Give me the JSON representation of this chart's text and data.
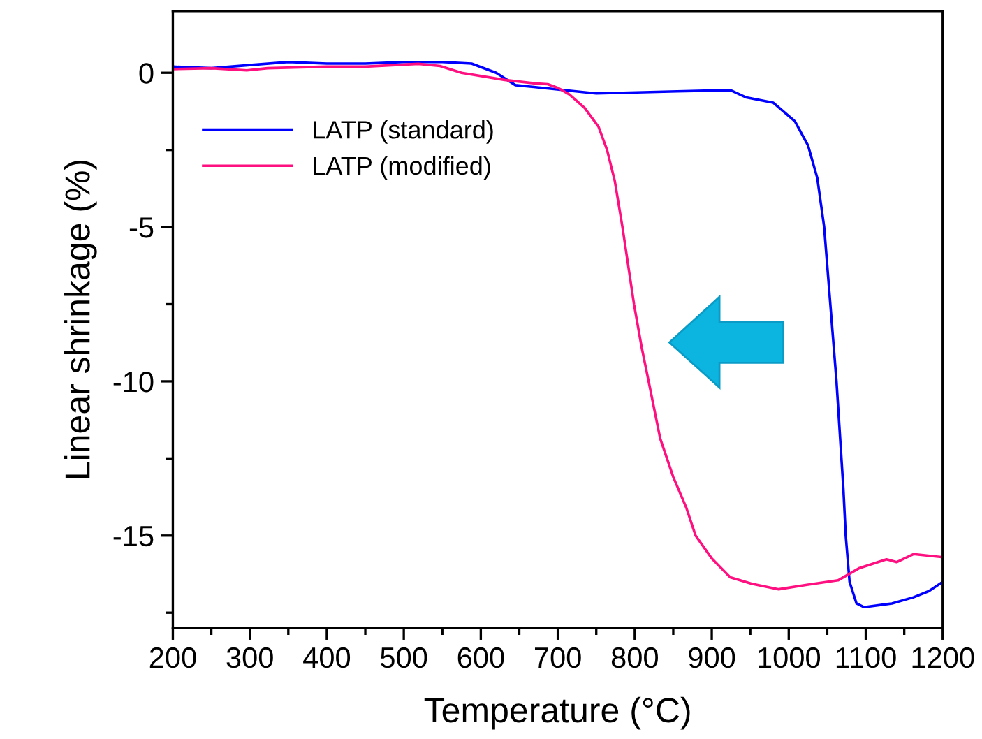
{
  "chart_data": {
    "type": "line",
    "xlabel": "Temperature (°C)",
    "ylabel": "Linear shrinkage (%)",
    "xlim": [
      200,
      1200
    ],
    "xticks": [
      200,
      300,
      400,
      500,
      600,
      700,
      800,
      900,
      1000,
      1100,
      1200
    ],
    "ylim": [
      -18,
      2
    ],
    "yticks": [
      -15,
      -10,
      -5,
      0
    ],
    "legend": "top left",
    "grid": false,
    "series": [
      {
        "name": "LATP (standard)",
        "color": "#0000ff",
        "x": [
          200,
          250,
          300,
          350,
          400,
          450,
          500,
          550,
          588,
          620,
          645,
          673,
          750,
          855,
          924,
          945,
          980,
          1008,
          1025,
          1037,
          1046,
          1062,
          1071,
          1074,
          1079,
          1088,
          1098,
          1134,
          1162,
          1182,
          1200
        ],
        "values": [
          0.2,
          0.15,
          0.25,
          0.35,
          0.3,
          0.3,
          0.35,
          0.35,
          0.3,
          0.0,
          -0.4,
          -0.47,
          -0.67,
          -0.6,
          -0.56,
          -0.8,
          -0.97,
          -1.57,
          -2.35,
          -3.4,
          -5,
          -10,
          -13.5,
          -15,
          -16.5,
          -17.2,
          -17.32,
          -17.2,
          -17.0,
          -16.8,
          -16.5
        ]
      },
      {
        "name": "LATP (modified)",
        "color": "#ff1080",
        "x": [
          200,
          250,
          296,
          323,
          400,
          450,
          519,
          547,
          575,
          631,
          673,
          687,
          701,
          715,
          735,
          753,
          764,
          774,
          784,
          799,
          809,
          818,
          833,
          850,
          867,
          879,
          900,
          924,
          952,
          987,
          1022,
          1064,
          1092,
          1127,
          1140,
          1162,
          1200
        ],
        "values": [
          0.12,
          0.15,
          0.08,
          0.15,
          0.2,
          0.2,
          0.29,
          0.22,
          0.0,
          -0.23,
          -0.35,
          -0.37,
          -0.5,
          -0.7,
          -1.14,
          -1.75,
          -2.5,
          -3.5,
          -5,
          -7.5,
          -8.9,
          -10,
          -11.85,
          -13.1,
          -14.1,
          -15,
          -15.74,
          -16.35,
          -16.56,
          -16.74,
          -16.6,
          -16.45,
          -16.05,
          -15.77,
          -15.86,
          -15.6,
          -15.7
        ]
      }
    ]
  }
}
